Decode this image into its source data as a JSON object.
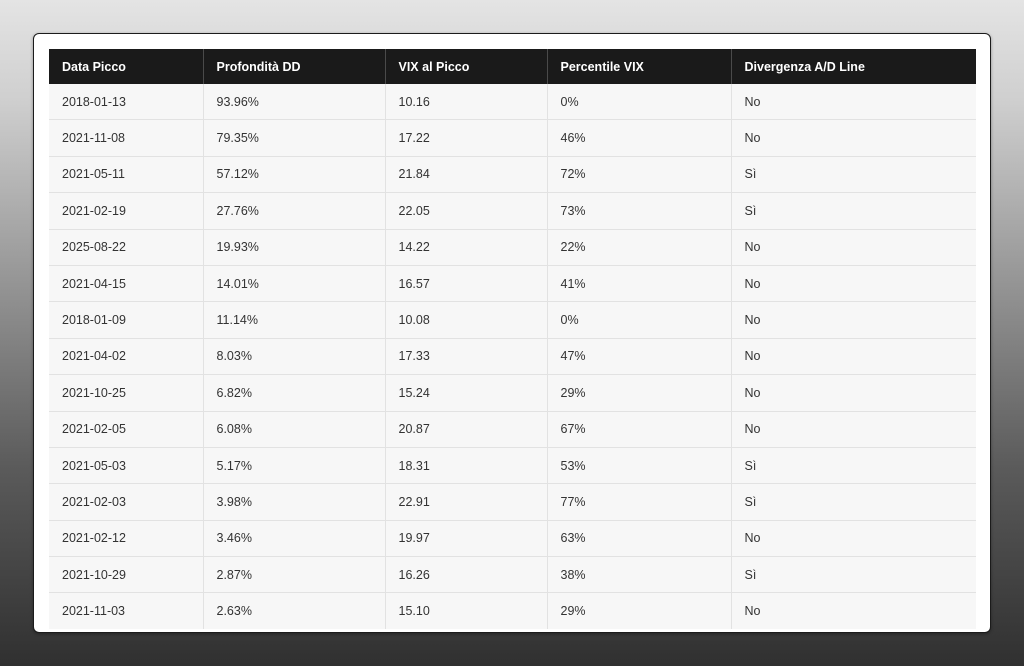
{
  "table": {
    "headers": [
      "Data Picco",
      "Profondità DD",
      "VIX al Picco",
      "Percentile VIX",
      "Divergenza A/D Line"
    ],
    "rows": [
      [
        "2018-01-13",
        "93.96%",
        "10.16",
        "0%",
        "No"
      ],
      [
        "2021-11-08",
        "79.35%",
        "17.22",
        "46%",
        "No"
      ],
      [
        "2021-05-11",
        "57.12%",
        "21.84",
        "72%",
        "Sì"
      ],
      [
        "2021-02-19",
        "27.76%",
        "22.05",
        "73%",
        "Sì"
      ],
      [
        "2025-08-22",
        "19.93%",
        "14.22",
        "22%",
        "No"
      ],
      [
        "2021-04-15",
        "14.01%",
        "16.57",
        "41%",
        "No"
      ],
      [
        "2018-01-09",
        "11.14%",
        "10.08",
        "0%",
        "No"
      ],
      [
        "2021-04-02",
        "8.03%",
        "17.33",
        "47%",
        "No"
      ],
      [
        "2021-10-25",
        "6.82%",
        "15.24",
        "29%",
        "No"
      ],
      [
        "2021-02-05",
        "6.08%",
        "20.87",
        "67%",
        "No"
      ],
      [
        "2021-05-03",
        "5.17%",
        "18.31",
        "53%",
        "Sì"
      ],
      [
        "2021-02-03",
        "3.98%",
        "22.91",
        "77%",
        "Sì"
      ],
      [
        "2021-02-12",
        "3.46%",
        "19.97",
        "63%",
        "No"
      ],
      [
        "2021-10-29",
        "2.87%",
        "16.26",
        "38%",
        "Sì"
      ],
      [
        "2021-11-03",
        "2.63%",
        "15.10",
        "29%",
        "No"
      ]
    ]
  }
}
